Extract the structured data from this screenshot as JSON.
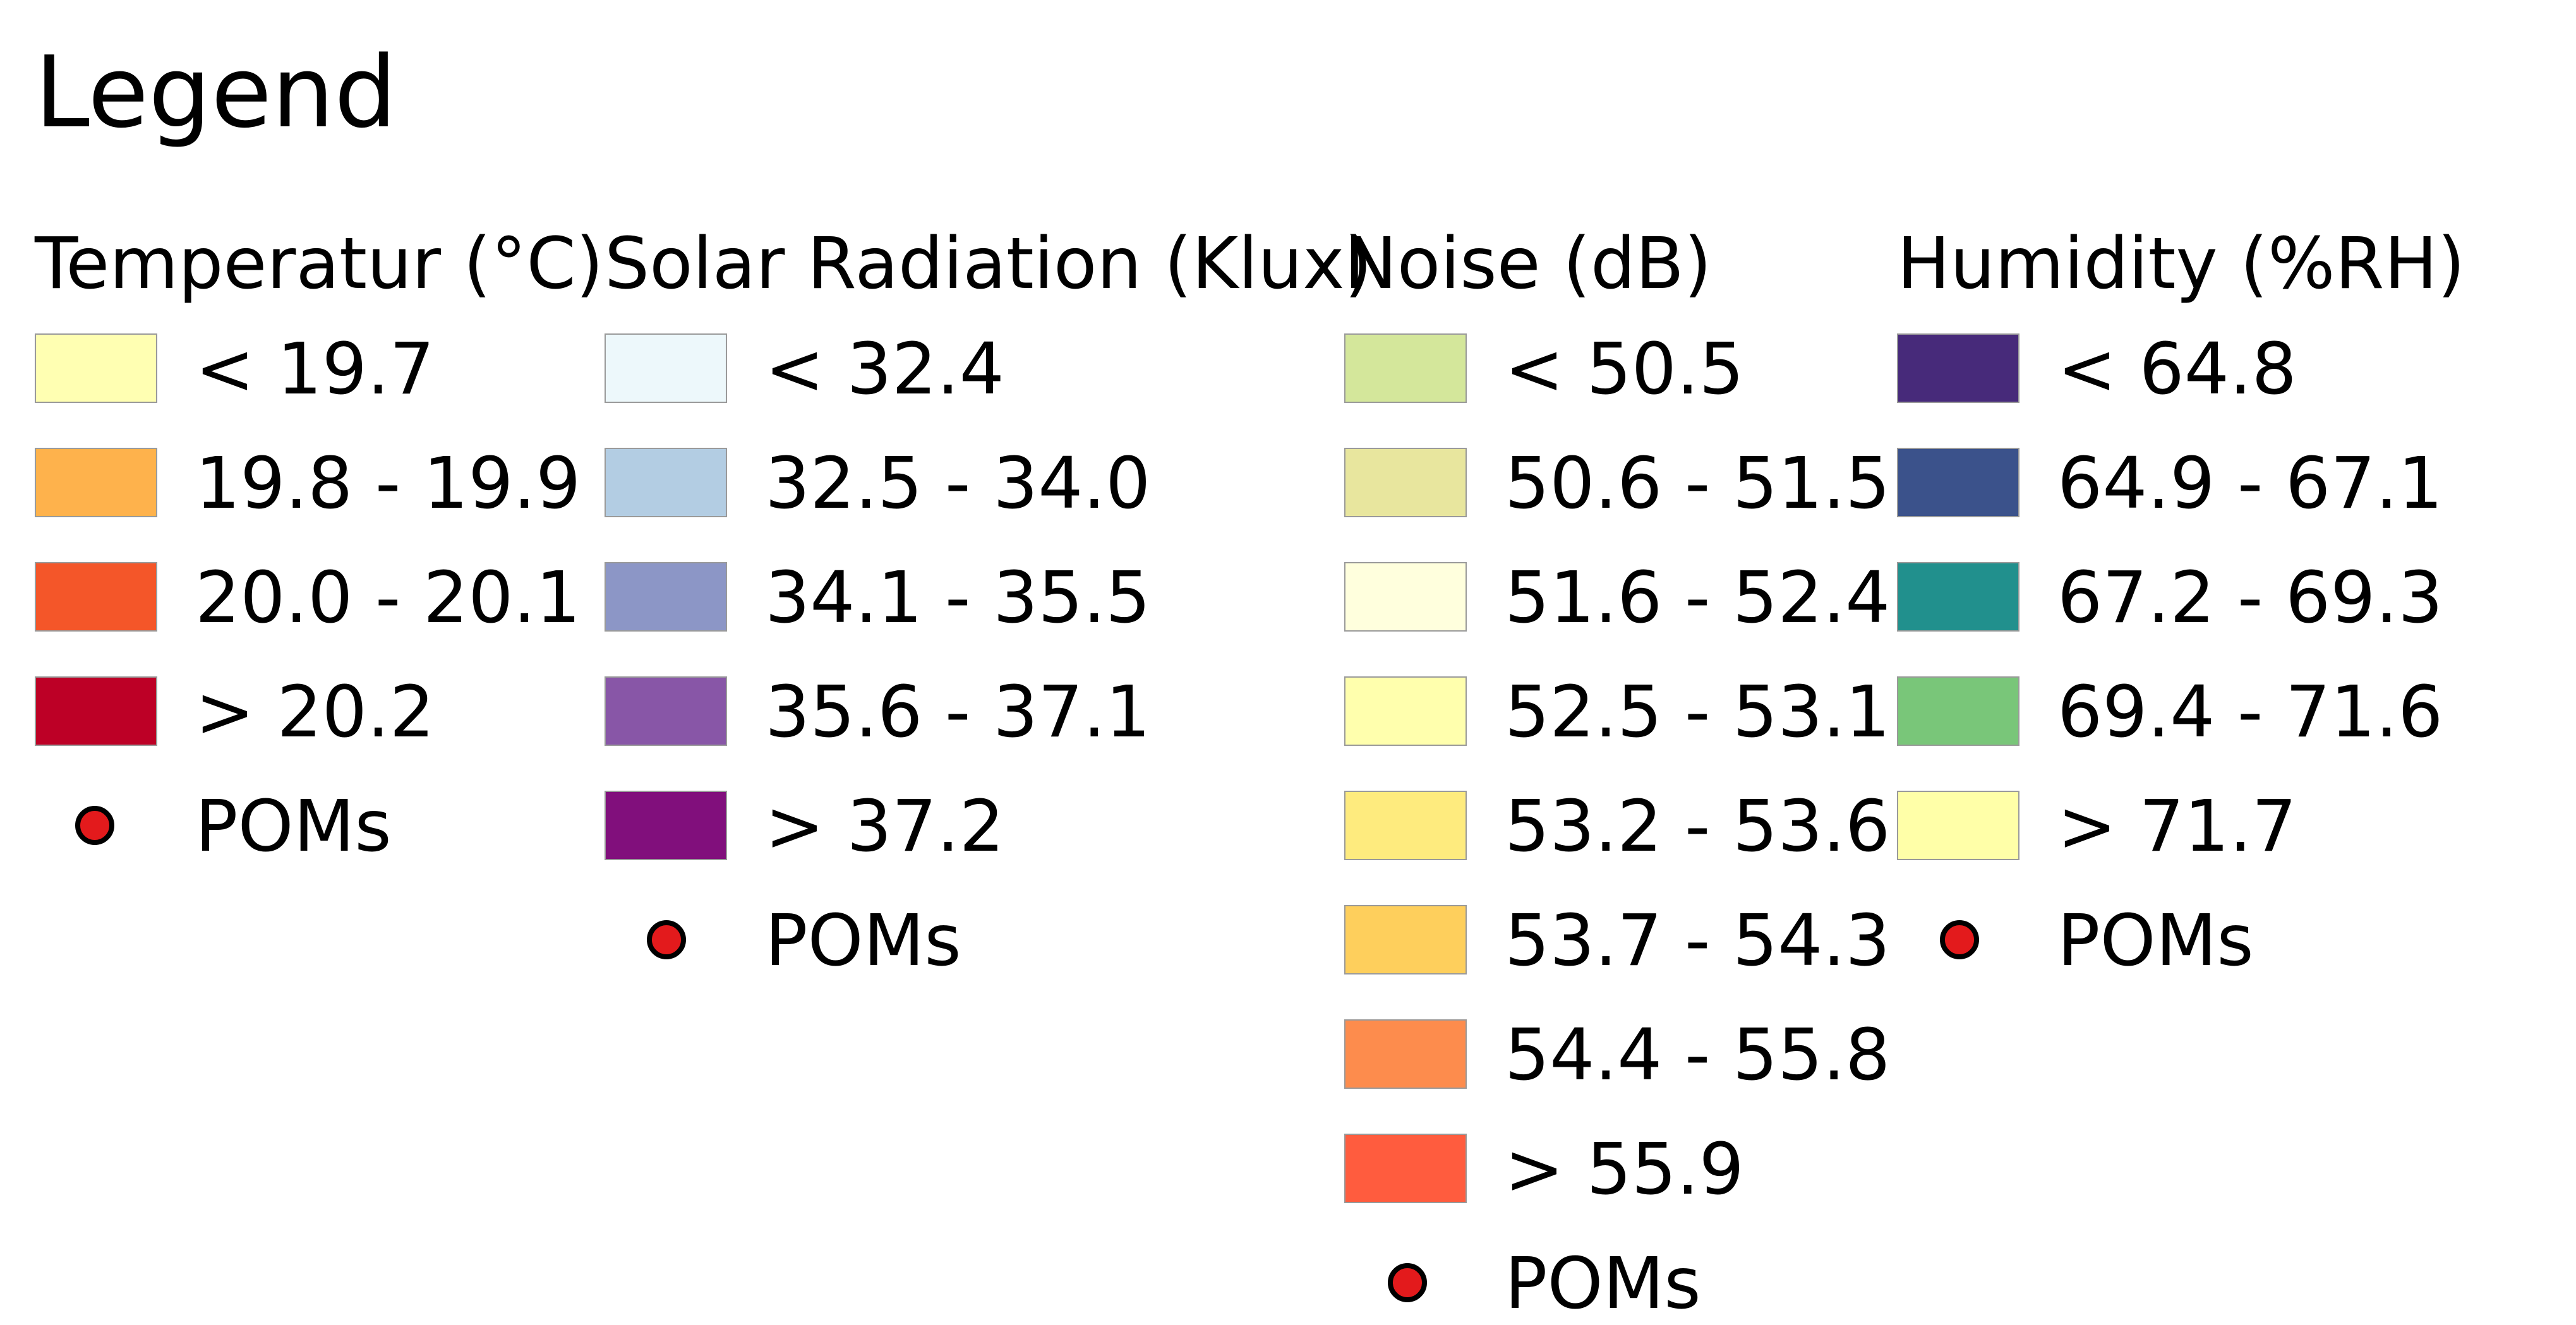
{
  "legend": {
    "title": "Legend",
    "poms_dot_color": "#e31a1c",
    "columns": [
      {
        "key": "temperature",
        "title": "Temperatur (°C)",
        "items": [
          {
            "label": "< 19.7",
            "color": "#ffffb2"
          },
          {
            "label": "19.8 - 19.9",
            "color": "#feb24c"
          },
          {
            "label": "20.0 - 20.1",
            "color": "#f45629"
          },
          {
            "label": "> 20.2",
            "color": "#bd0026"
          }
        ],
        "poms_label": "POMs"
      },
      {
        "key": "solar",
        "title": "Solar Radiation (Klux)",
        "items": [
          {
            "label": "< 32.4",
            "color": "#edf8fb"
          },
          {
            "label": "32.5 - 34.0",
            "color": "#b3cde3"
          },
          {
            "label": "34.1 - 35.5",
            "color": "#8c96c6"
          },
          {
            "label": "35.6 - 37.1",
            "color": "#8856a7"
          },
          {
            "label": "> 37.2",
            "color": "#810f7c"
          }
        ],
        "poms_label": "POMs"
      },
      {
        "key": "noise",
        "title": "Noise  (dB)",
        "items": [
          {
            "label": "< 50.5",
            "color": "#d4e79b"
          },
          {
            "label": "50.6 - 51.5",
            "color": "#e8e69e"
          },
          {
            "label": "51.6 - 52.4",
            "color": "#ffffdd"
          },
          {
            "label": "52.5 - 53.1",
            "color": "#ffffad"
          },
          {
            "label": "53.2 - 53.6",
            "color": "#feeb7e"
          },
          {
            "label": "53.7 - 54.3",
            "color": "#fecf5c"
          },
          {
            "label": "54.4 - 55.8",
            "color": "#fd8c4d"
          },
          {
            "label": "> 55.9",
            "color": "#ff5c3e"
          }
        ],
        "poms_label": "POMs"
      },
      {
        "key": "humidity",
        "title": "Humidity  (%RH)",
        "items": [
          {
            "label": "< 64.8",
            "color": "#472a7a"
          },
          {
            "label": "64.9 - 67.1",
            "color": "#3b528b"
          },
          {
            "label": "67.2 - 69.3",
            "color": "#21908d"
          },
          {
            "label": "69.4 - 71.6",
            "color": "#79c679"
          },
          {
            "label": "> 71.7",
            "color": "#ffffa8"
          }
        ],
        "poms_label": "POMs"
      }
    ]
  }
}
